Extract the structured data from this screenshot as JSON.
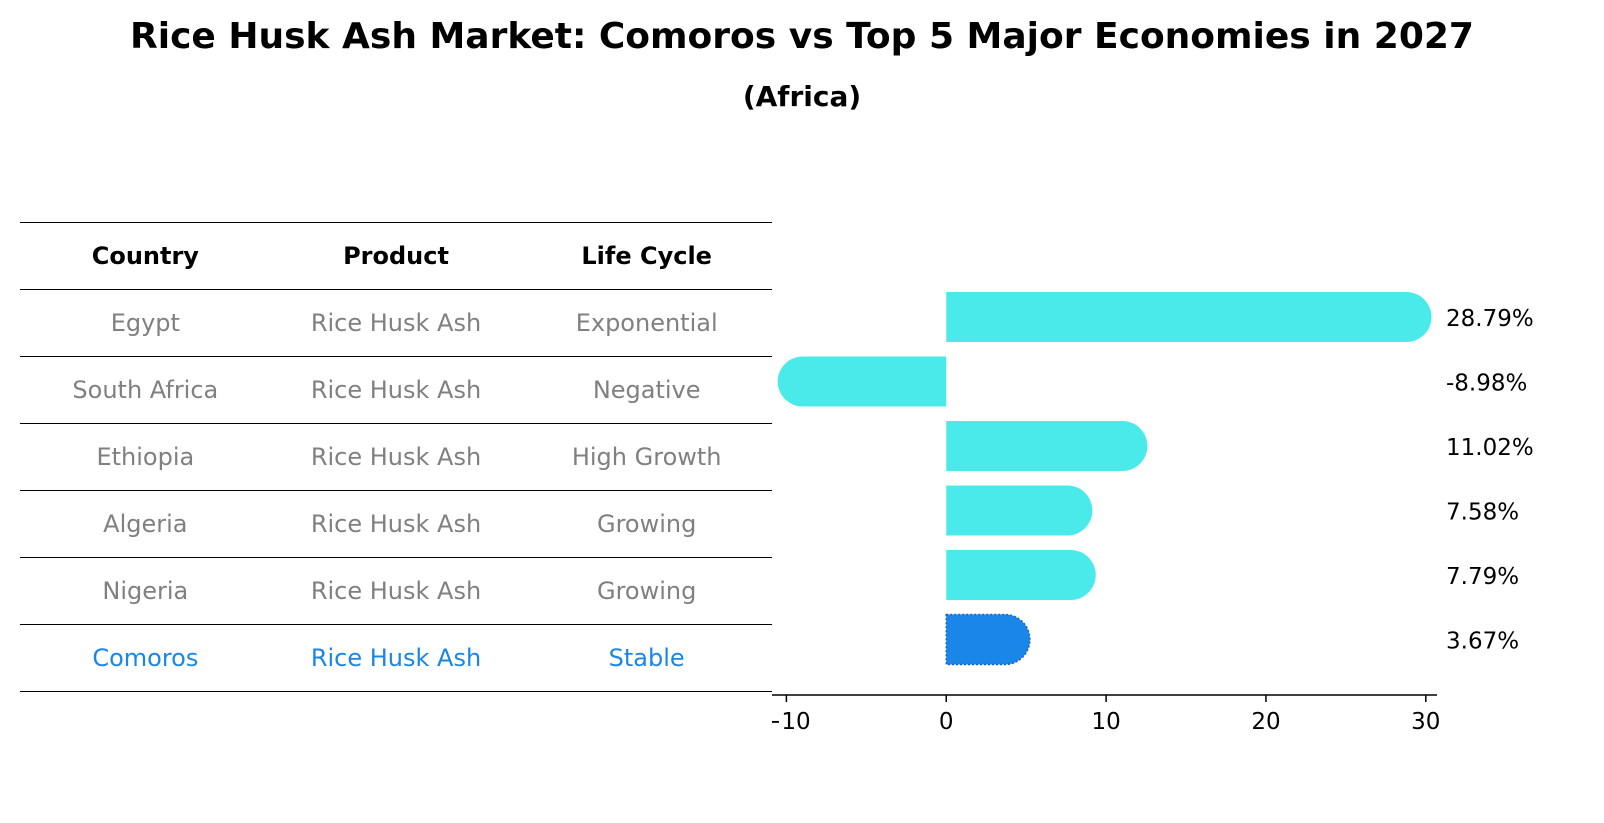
{
  "header": {
    "title": "Rice Husk Ash Market: Comoros vs Top 5 Major Economies in 2027",
    "subtitle": "(Africa)"
  },
  "table": {
    "columns": [
      "Country",
      "Product",
      "Life Cycle"
    ],
    "rows": [
      [
        "Egypt",
        "Rice Husk Ash",
        "Exponential"
      ],
      [
        "South Africa",
        "Rice Husk Ash",
        "Negative"
      ],
      [
        "Ethiopia",
        "Rice Husk Ash",
        "High Growth"
      ],
      [
        "Algeria",
        "Rice Husk Ash",
        "Growing"
      ],
      [
        "Nigeria",
        "Rice Husk Ash",
        "Growing"
      ],
      [
        "Comoros",
        "Rice Husk Ash",
        "Stable"
      ]
    ],
    "highlight_row": 5
  },
  "colors": {
    "bar": "#4aeaea",
    "highlight": "#1a86e8",
    "muted_text": "#808080"
  },
  "chart_data": {
    "type": "bar",
    "orientation": "horizontal",
    "categories": [
      "Egypt",
      "South Africa",
      "Ethiopia",
      "Algeria",
      "Nigeria",
      "Comoros"
    ],
    "values": [
      28.79,
      -8.98,
      11.02,
      7.58,
      7.79,
      3.67
    ],
    "value_labels": [
      "28.79%",
      "-8.98%",
      "11.02%",
      "7.58%",
      "7.79%",
      "3.67%"
    ],
    "highlight_index": 5,
    "xlim": [
      -10.9,
      30.7
    ],
    "xticks": [
      -10,
      0,
      10,
      20,
      30
    ],
    "xtick_labels": [
      "−10",
      "0",
      "10",
      "20",
      "30"
    ],
    "grid": false
  }
}
